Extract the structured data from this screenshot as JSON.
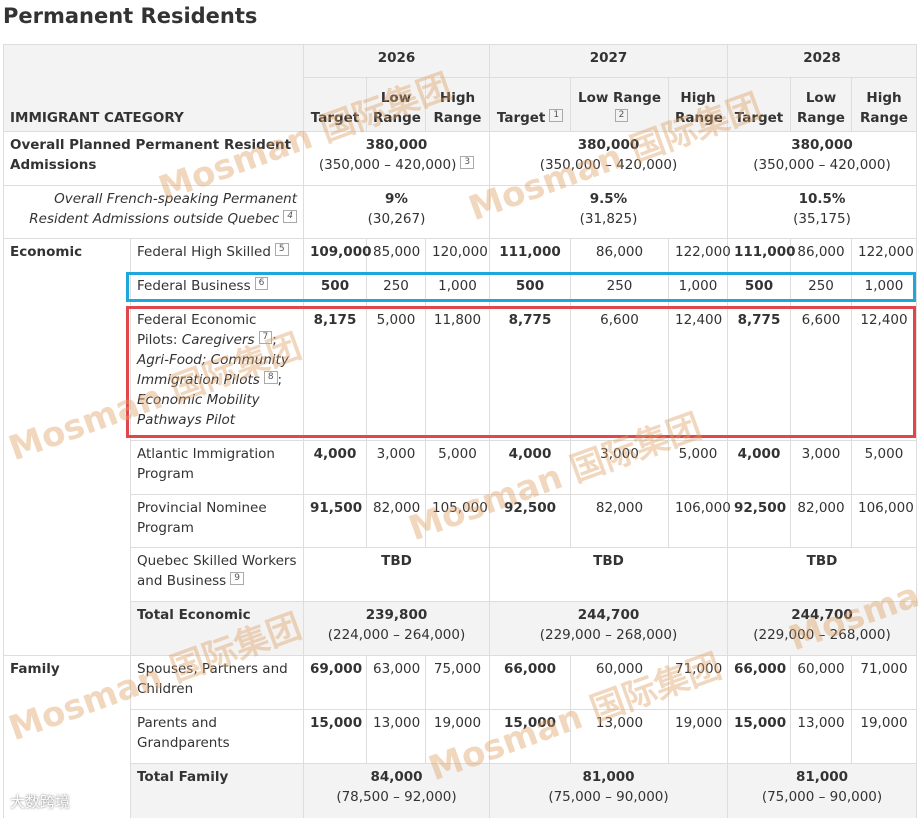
{
  "title": "Permanent Residents",
  "watermark": "Mosman 国际集团",
  "corner_mark": "大数跨境",
  "table": {
    "category_header": "IMMIGRANT CATEGORY",
    "years": [
      "2026",
      "2027",
      "2028"
    ],
    "subheaders": [
      [
        {
          "label": "Target"
        },
        {
          "label": "Low Range"
        },
        {
          "label": "High Range"
        }
      ],
      [
        {
          "label": "Target",
          "note": "1"
        },
        {
          "label": "Low Range",
          "note": "2"
        },
        {
          "label": "High Range"
        }
      ],
      [
        {
          "label": "Target"
        },
        {
          "label": "Low Range"
        },
        {
          "label": "High Range"
        }
      ]
    ],
    "overall": {
      "label": "Overall Planned Permanent Resident Admissions",
      "values": [
        {
          "target": "380,000",
          "range": "(350,000 – 420,000)",
          "note": "3"
        },
        {
          "target": "380,000",
          "range": "(350,000 – 420,000)"
        },
        {
          "target": "380,000",
          "range": "(350,000 – 420,000)"
        }
      ]
    },
    "french": {
      "label": "Overall French-speaking Permanent Resident Admissions outside Quebec",
      "note": "4",
      "values": [
        {
          "target": "9%",
          "range": "(30,267)"
        },
        {
          "target": "9.5%",
          "range": "(31,825)"
        },
        {
          "target": "10.5%",
          "range": "(35,175)"
        }
      ]
    },
    "groups": [
      {
        "name": "Economic",
        "rows": [
          {
            "label": "Federal High Skilled",
            "note": "5",
            "values": [
              "109,000",
              "85,000",
              "120,000",
              "111,000",
              "86,000",
              "122,000",
              "111,000",
              "86,000",
              "122,000"
            ]
          },
          {
            "label": "Federal Business",
            "note": "6",
            "values": [
              "500",
              "250",
              "1,000",
              "500",
              "250",
              "1,000",
              "500",
              "250",
              "1,000"
            ]
          },
          {
            "label": "Federal Economic Pilots:",
            "programs": [
              {
                "name": "Caregivers",
                "note": "7"
              },
              {
                "name": "Agri-Food; Community Immigration Pilots",
                "note": "8"
              },
              {
                "name": "Economic Mobility Pathways Pilot"
              }
            ],
            "values": [
              "8,175",
              "5,000",
              "11,800",
              "8,775",
              "6,600",
              "12,400",
              "8,775",
              "6,600",
              "12,400"
            ]
          },
          {
            "label": "Atlantic Immigration Program",
            "values": [
              "4,000",
              "3,000",
              "5,000",
              "4,000",
              "3,000",
              "5,000",
              "4,000",
              "3,000",
              "5,000"
            ]
          },
          {
            "label": "Provincial Nominee Program",
            "values": [
              "91,500",
              "82,000",
              "105,000",
              "92,500",
              "82,000",
              "106,000",
              "92,500",
              "82,000",
              "106,000"
            ]
          },
          {
            "label": "Quebec Skilled Workers and Business",
            "note": "9",
            "merged": [
              "TBD",
              "TBD",
              "TBD"
            ]
          }
        ],
        "total": {
          "label": "Total Economic",
          "values": [
            {
              "target": "239,800",
              "range": "(224,000 – 264,000)"
            },
            {
              "target": "244,700",
              "range": "(229,000 – 268,000)"
            },
            {
              "target": "244,700",
              "range": "(229,000 – 268,000)"
            }
          ]
        }
      },
      {
        "name": "Family",
        "rows": [
          {
            "label": "Spouses, Partners and Children",
            "values": [
              "69,000",
              "63,000",
              "75,000",
              "66,000",
              "60,000",
              "71,000",
              "66,000",
              "60,000",
              "71,000"
            ]
          },
          {
            "label": "Parents and Grandparents",
            "values": [
              "15,000",
              "13,000",
              "19,000",
              "15,000",
              "13,000",
              "19,000",
              "15,000",
              "13,000",
              "19,000"
            ]
          }
        ],
        "total": {
          "label": "Total Family",
          "values": [
            {
              "target": "84,000",
              "range": "(78,500 – 92,000)"
            },
            {
              "target": "81,000",
              "range": "(75,000 – 90,000)"
            },
            {
              "target": "81,000",
              "range": "(75,000 – 90,000)"
            }
          ]
        }
      }
    ]
  }
}
